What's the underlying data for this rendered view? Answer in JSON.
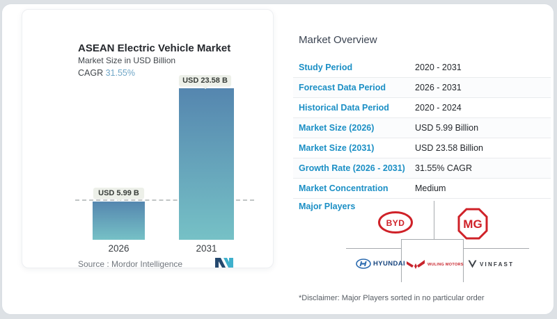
{
  "chart_card": {
    "title": "ASEAN Electric Vehicle Market",
    "subtitle": "Market Size in USD Billion",
    "cagr_label": "CAGR ",
    "cagr_value": "31.55%",
    "source_label": "Source :  ",
    "source_value": "Mordor Intelligence"
  },
  "chart_data": {
    "type": "bar",
    "categories": [
      "2026",
      "2031"
    ],
    "values": [
      5.99,
      23.58
    ],
    "value_labels": [
      "USD 5.99 B",
      "USD 23.58 B"
    ],
    "title": "ASEAN Electric Vehicle Market",
    "xlabel": "",
    "ylabel": "Market Size in USD Billion",
    "ylim": [
      0,
      25
    ],
    "legend": "none",
    "grid": "off",
    "baseline_dashed_at": 5.99,
    "bar_gradient_top": "#5586af",
    "bar_gradient_bottom": "#76c1c6",
    "cagr_percent": 31.55
  },
  "overview": {
    "heading": "Market Overview",
    "rows": [
      {
        "label": "Study Period",
        "value": "2020 - 2031"
      },
      {
        "label": "Forecast Data Period",
        "value": "2026 - 2031"
      },
      {
        "label": "Historical Data Period",
        "value": "2020 - 2024"
      },
      {
        "label": "Market Size (2026)",
        "value": "USD 5.99 Billion"
      },
      {
        "label": "Market Size (2031)",
        "value": "USD 23.58 Billion"
      },
      {
        "label": "Growth Rate (2026 - 2031)",
        "value": "31.55% CAGR"
      },
      {
        "label": "Market Concentration",
        "value": "Medium"
      }
    ],
    "major_players_label": "Major Players",
    "players": {
      "byd": "BYD",
      "mg": "MG",
      "hyundai": "HYUNDAI",
      "wuling": "WULING MOTORS",
      "vinfast": "VINFAST"
    },
    "disclaimer": "*Disclaimer: Major Players sorted in no particular order"
  },
  "colors": {
    "label_blue": "#1b8fc5",
    "cagr_blue": "#6fa6c7",
    "brand_red": "#cf2128",
    "hyundai_blue": "#2d6cb0",
    "logo_navy": "#24486e",
    "logo_teal": "#3fb0cc"
  }
}
